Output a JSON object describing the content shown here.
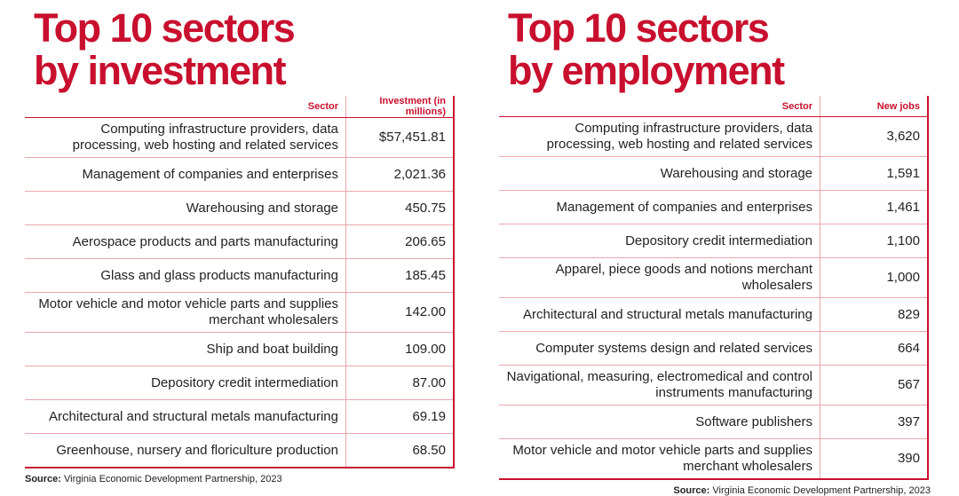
{
  "panels": [
    {
      "title": [
        "Top 10 sectors",
        "by investment"
      ],
      "columns": [
        "Sector",
        "Investment (in millions)"
      ],
      "rows": [
        [
          "Computing infrastructure providers, data processing, web hosting and related services",
          "$57,451.81"
        ],
        [
          "Management of companies and enterprises",
          "2,021.36"
        ],
        [
          "Warehousing and storage",
          "450.75"
        ],
        [
          "Aerospace products and parts manufacturing",
          "206.65"
        ],
        [
          "Glass and glass products manufacturing",
          "185.45"
        ],
        [
          "Motor vehicle and motor vehicle parts and supplies merchant wholesalers",
          "142.00"
        ],
        [
          "Ship and boat building",
          "109.00"
        ],
        [
          "Depository credit intermediation",
          "87.00"
        ],
        [
          "Architectural and structural metals manufacturing",
          "69.19"
        ],
        [
          "Greenhouse, nursery and floriculture production",
          "68.50"
        ]
      ],
      "source_label": "Source:",
      "source": "Virginia Economic Development Partnership, 2023"
    },
    {
      "title": [
        "Top 10 sectors",
        "by employment"
      ],
      "columns": [
        "Sector",
        "New jobs"
      ],
      "rows": [
        [
          "Computing infrastructure providers, data processing, web hosting and related services",
          "3,620"
        ],
        [
          "Warehousing and storage",
          "1,591"
        ],
        [
          "Management of companies and enterprises",
          "1,461"
        ],
        [
          "Depository credit intermediation",
          "1,100"
        ],
        [
          "Apparel, piece goods and notions merchant wholesalers",
          "1,000"
        ],
        [
          "Architectural and structural metals manufacturing",
          "829"
        ],
        [
          "Computer systems design and related services",
          "664"
        ],
        [
          "Navigational, measuring, electromedical and control instruments manufacturing",
          "567"
        ],
        [
          "Software publishers",
          "397"
        ],
        [
          "Motor vehicle and motor vehicle parts and supplies merchant wholesalers",
          "390"
        ]
      ],
      "source_label": "Source:",
      "source": "Virginia Economic Development Partnership, 2023"
    }
  ]
}
